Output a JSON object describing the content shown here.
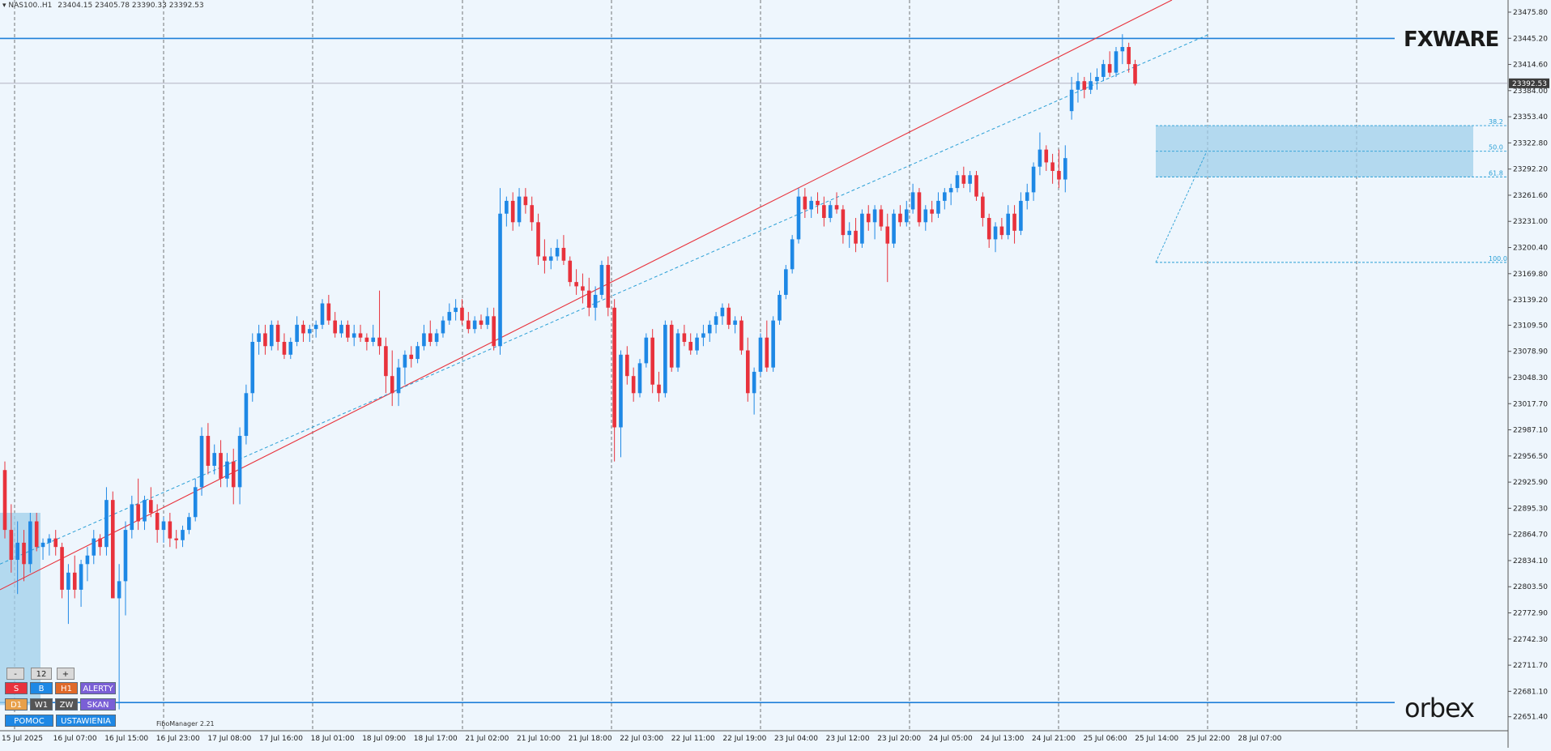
{
  "header": {
    "symbol": "NAS100..H1",
    "ohlc": "23404.15 23405.78 23390.33 23392.53"
  },
  "watermark_top": "FXWARE",
  "watermark_bottom": "orbex",
  "indicator_label": "FiboManager 2.21",
  "colors": {
    "background": "#eef6fd",
    "bull": "#1e88e5",
    "bear": "#e8323c",
    "trend_red": "#e8323c",
    "trend_dash": "#2a9fd6",
    "level_line": "#1e7fd8",
    "zone_fill": "#9fcfea"
  },
  "controls": {
    "minus": "-",
    "count": "12",
    "plus": "+",
    "row1": [
      "S",
      "B",
      "H1",
      "ALERTY"
    ],
    "row2": [
      "D1",
      "W1",
      "ZW",
      "SKAN"
    ],
    "row3": [
      "POMOC",
      "USTAWIENIA"
    ]
  },
  "chart_data": {
    "type": "candlestick",
    "timeframe": "H1",
    "ylim": [
      22635,
      23490
    ],
    "y_ticks": [
      "23475.80",
      "23445.20",
      "23414.60",
      "23384.00",
      "23353.40",
      "23322.80",
      "23292.20",
      "23261.60",
      "23231.00",
      "23200.40",
      "23169.80",
      "23139.20",
      "23109.50",
      "23078.90",
      "23048.30",
      "23017.70",
      "22987.10",
      "22956.50",
      "22925.90",
      "22895.30",
      "22864.70",
      "22834.10",
      "22803.50",
      "22772.90",
      "22742.30",
      "22711.70",
      "22681.10",
      "22651.40"
    ],
    "current_price": "23392.53",
    "x_labels": [
      "15 Jul 2025",
      "16 Jul 07:00",
      "16 Jul 15:00",
      "16 Jul 23:00",
      "17 Jul 08:00",
      "17 Jul 16:00",
      "18 Jul 01:00",
      "18 Jul 09:00",
      "18 Jul 17:00",
      "21 Jul 02:00",
      "21 Jul 10:00",
      "21 Jul 18:00",
      "22 Jul 03:00",
      "22 Jul 11:00",
      "22 Jul 19:00",
      "23 Jul 04:00",
      "23 Jul 12:00",
      "23 Jul 20:00",
      "24 Jul 05:00",
      "24 Jul 13:00",
      "24 Jul 21:00",
      "25 Jul 06:00",
      "25 Jul 14:00",
      "25 Jul 22:00",
      "28 Jul 07:00"
    ],
    "fib_levels": [
      {
        "label": "38.2",
        "price": 23343
      },
      {
        "label": "50.0",
        "price": 23313
      },
      {
        "label": "61.8",
        "price": 23283
      },
      {
        "label": "100.0",
        "price": 23183
      }
    ],
    "horizontal_levels": [
      23445,
      22668
    ],
    "candles": [
      [
        22940,
        22950,
        22860,
        22870
      ],
      [
        22870,
        22900,
        22820,
        22835
      ],
      [
        22835,
        22880,
        22795,
        22855
      ],
      [
        22855,
        22870,
        22810,
        22830
      ],
      [
        22830,
        22890,
        22820,
        22880
      ],
      [
        22880,
        22890,
        22845,
        22850
      ],
      [
        22850,
        22860,
        22835,
        22855
      ],
      [
        22855,
        22865,
        22840,
        22860
      ],
      [
        22860,
        22870,
        22840,
        22850
      ],
      [
        22850,
        22855,
        22790,
        22800
      ],
      [
        22800,
        22830,
        22760,
        22820
      ],
      [
        22820,
        22840,
        22790,
        22800
      ],
      [
        22800,
        22835,
        22780,
        22830
      ],
      [
        22830,
        22850,
        22810,
        22840
      ],
      [
        22840,
        22870,
        22830,
        22860
      ],
      [
        22860,
        22865,
        22840,
        22850
      ],
      [
        22850,
        22920,
        22840,
        22905
      ],
      [
        22905,
        22915,
        22790,
        22790
      ],
      [
        22790,
        22830,
        22660,
        22810
      ],
      [
        22810,
        22880,
        22770,
        22870
      ],
      [
        22870,
        22910,
        22860,
        22900
      ],
      [
        22900,
        22930,
        22870,
        22880
      ],
      [
        22880,
        22910,
        22870,
        22905
      ],
      [
        22905,
        22920,
        22885,
        22890
      ],
      [
        22890,
        22900,
        22855,
        22870
      ],
      [
        22870,
        22885,
        22855,
        22880
      ],
      [
        22880,
        22890,
        22850,
        22860
      ],
      [
        22860,
        22870,
        22848,
        22858
      ],
      [
        22858,
        22875,
        22850,
        22870
      ],
      [
        22870,
        22890,
        22865,
        22885
      ],
      [
        22885,
        22930,
        22880,
        22920
      ],
      [
        22920,
        22990,
        22910,
        22980
      ],
      [
        22980,
        22995,
        22935,
        22945
      ],
      [
        22945,
        22970,
        22935,
        22960
      ],
      [
        22960,
        22975,
        22920,
        22930
      ],
      [
        22930,
        22960,
        22920,
        22950
      ],
      [
        22950,
        22965,
        22900,
        22920
      ],
      [
        22920,
        22990,
        22900,
        22980
      ],
      [
        22980,
        23040,
        22970,
        23030
      ],
      [
        23030,
        23100,
        23020,
        23090
      ],
      [
        23090,
        23110,
        23075,
        23100
      ],
      [
        23100,
        23110,
        23075,
        23085
      ],
      [
        23085,
        23115,
        23080,
        23110
      ],
      [
        23110,
        23115,
        23080,
        23090
      ],
      [
        23090,
        23100,
        23070,
        23075
      ],
      [
        23075,
        23095,
        23070,
        23090
      ],
      [
        23090,
        23120,
        23085,
        23110
      ],
      [
        23110,
        23115,
        23090,
        23100
      ],
      [
        23100,
        23110,
        23090,
        23105
      ],
      [
        23105,
        23115,
        23095,
        23110
      ],
      [
        23110,
        23140,
        23105,
        23135
      ],
      [
        23135,
        23145,
        23110,
        23115
      ],
      [
        23115,
        23125,
        23095,
        23100
      ],
      [
        23100,
        23115,
        23095,
        23110
      ],
      [
        23110,
        23115,
        23090,
        23095
      ],
      [
        23095,
        23110,
        23085,
        23100
      ],
      [
        23100,
        23110,
        23090,
        23095
      ],
      [
        23095,
        23100,
        23080,
        23090
      ],
      [
        23090,
        23110,
        23085,
        23095
      ],
      [
        23095,
        23150,
        23075,
        23085
      ],
      [
        23085,
        23095,
        23030,
        23050
      ],
      [
        23050,
        23080,
        23015,
        23030
      ],
      [
        23030,
        23070,
        23015,
        23060
      ],
      [
        23060,
        23080,
        23040,
        23075
      ],
      [
        23075,
        23085,
        23060,
        23070
      ],
      [
        23070,
        23090,
        23065,
        23085
      ],
      [
        23085,
        23110,
        23080,
        23100
      ],
      [
        23100,
        23115,
        23085,
        23090
      ],
      [
        23090,
        23105,
        23085,
        23100
      ],
      [
        23100,
        23120,
        23095,
        23115
      ],
      [
        23115,
        23135,
        23110,
        23125
      ],
      [
        23125,
        23140,
        23115,
        23130
      ],
      [
        23130,
        23140,
        23110,
        23115
      ],
      [
        23115,
        23125,
        23100,
        23105
      ],
      [
        23105,
        23120,
        23100,
        23115
      ],
      [
        23115,
        23122,
        23105,
        23110
      ],
      [
        23110,
        23130,
        23105,
        23120
      ],
      [
        23120,
        23130,
        23080,
        23085
      ],
      [
        23085,
        23270,
        23075,
        23240
      ],
      [
        23240,
        23260,
        23225,
        23255
      ],
      [
        23255,
        23265,
        23220,
        23230
      ],
      [
        23230,
        23270,
        23225,
        23260
      ],
      [
        23260,
        23270,
        23240,
        23250
      ],
      [
        23250,
        23260,
        23220,
        23230
      ],
      [
        23230,
        23240,
        23180,
        23190
      ],
      [
        23190,
        23210,
        23170,
        23185
      ],
      [
        23185,
        23200,
        23175,
        23190
      ],
      [
        23190,
        23210,
        23185,
        23200
      ],
      [
        23200,
        23215,
        23180,
        23185
      ],
      [
        23185,
        23190,
        23155,
        23160
      ],
      [
        23160,
        23175,
        23145,
        23155
      ],
      [
        23155,
        23170,
        23135,
        23150
      ],
      [
        23150,
        23165,
        23120,
        23130
      ],
      [
        23130,
        23155,
        23115,
        23145
      ],
      [
        23145,
        23185,
        23140,
        23180
      ],
      [
        23180,
        23190,
        23120,
        23130
      ],
      [
        23130,
        23140,
        22950,
        22990
      ],
      [
        22990,
        23080,
        22955,
        23075
      ],
      [
        23075,
        23085,
        23040,
        23050
      ],
      [
        23050,
        23060,
        23020,
        23030
      ],
      [
        23030,
        23070,
        23025,
        23065
      ],
      [
        23065,
        23100,
        23060,
        23095
      ],
      [
        23095,
        23105,
        23030,
        23040
      ],
      [
        23040,
        23055,
        23020,
        23030
      ],
      [
        23030,
        23115,
        23025,
        23110
      ],
      [
        23110,
        23115,
        23055,
        23060
      ],
      [
        23060,
        23105,
        23055,
        23100
      ],
      [
        23100,
        23110,
        23085,
        23090
      ],
      [
        23090,
        23100,
        23075,
        23080
      ],
      [
        23080,
        23100,
        23075,
        23095
      ],
      [
        23095,
        23110,
        23085,
        23100
      ],
      [
        23100,
        23115,
        23090,
        23110
      ],
      [
        23110,
        23125,
        23100,
        23120
      ],
      [
        23120,
        23135,
        23110,
        23130
      ],
      [
        23130,
        23135,
        23105,
        23110
      ],
      [
        23110,
        23120,
        23100,
        23115
      ],
      [
        23115,
        23120,
        23075,
        23080
      ],
      [
        23080,
        23095,
        23020,
        23030
      ],
      [
        23030,
        23060,
        23005,
        23055
      ],
      [
        23055,
        23100,
        23050,
        23095
      ],
      [
        23095,
        23115,
        23055,
        23060
      ],
      [
        23060,
        23120,
        23055,
        23115
      ],
      [
        23115,
        23150,
        23110,
        23145
      ],
      [
        23145,
        23180,
        23140,
        23175
      ],
      [
        23175,
        23215,
        23170,
        23210
      ],
      [
        23210,
        23270,
        23205,
        23260
      ],
      [
        23260,
        23270,
        23235,
        23245
      ],
      [
        23245,
        23260,
        23235,
        23255
      ],
      [
        23255,
        23265,
        23240,
        23250
      ],
      [
        23250,
        23260,
        23225,
        23235
      ],
      [
        23235,
        23255,
        23230,
        23250
      ],
      [
        23250,
        23265,
        23240,
        23245
      ],
      [
        23245,
        23250,
        23205,
        23215
      ],
      [
        23215,
        23230,
        23200,
        23220
      ],
      [
        23220,
        23235,
        23195,
        23205
      ],
      [
        23205,
        23245,
        23200,
        23240
      ],
      [
        23240,
        23250,
        23220,
        23230
      ],
      [
        23230,
        23250,
        23210,
        23245
      ],
      [
        23245,
        23250,
        23220,
        23225
      ],
      [
        23225,
        23240,
        23160,
        23205
      ],
      [
        23205,
        23245,
        23200,
        23240
      ],
      [
        23240,
        23250,
        23225,
        23230
      ],
      [
        23230,
        23255,
        23225,
        23245
      ],
      [
        23245,
        23275,
        23240,
        23265
      ],
      [
        23265,
        23270,
        23225,
        23230
      ],
      [
        23230,
        23250,
        23220,
        23245
      ],
      [
        23245,
        23255,
        23230,
        23240
      ],
      [
        23240,
        23265,
        23235,
        23255
      ],
      [
        23255,
        23270,
        23245,
        23265
      ],
      [
        23265,
        23275,
        23250,
        23270
      ],
      [
        23270,
        23290,
        23265,
        23285
      ],
      [
        23285,
        23295,
        23270,
        23275
      ],
      [
        23275,
        23290,
        23265,
        23285
      ],
      [
        23285,
        23290,
        23255,
        23260
      ],
      [
        23260,
        23265,
        23225,
        23235
      ],
      [
        23235,
        23240,
        23200,
        23210
      ],
      [
        23210,
        23230,
        23195,
        23225
      ],
      [
        23225,
        23235,
        23210,
        23215
      ],
      [
        23215,
        23250,
        23210,
        23240
      ],
      [
        23240,
        23250,
        23205,
        23220
      ],
      [
        23220,
        23265,
        23215,
        23255
      ],
      [
        23255,
        23275,
        23245,
        23265
      ],
      [
        23265,
        23300,
        23255,
        23295
      ],
      [
        23295,
        23335,
        23285,
        23315
      ],
      [
        23315,
        23320,
        23290,
        23300
      ],
      [
        23300,
        23310,
        23275,
        23290
      ],
      [
        23290,
        23315,
        23270,
        23280
      ],
      [
        23280,
        23320,
        23265,
        23305
      ],
      [
        23360,
        23400,
        23350,
        23385
      ],
      [
        23385,
        23405,
        23370,
        23395
      ],
      [
        23395,
        23400,
        23375,
        23385
      ],
      [
        23385,
        23405,
        23380,
        23395
      ],
      [
        23395,
        23410,
        23385,
        23400
      ],
      [
        23400,
        23420,
        23395,
        23415
      ],
      [
        23415,
        23430,
        23400,
        23405
      ],
      [
        23405,
        23435,
        23400,
        23430
      ],
      [
        23430,
        23450,
        23415,
        23435
      ],
      [
        23435,
        23440,
        23405,
        23415
      ],
      [
        23415,
        23420,
        23390,
        23392
      ]
    ]
  }
}
